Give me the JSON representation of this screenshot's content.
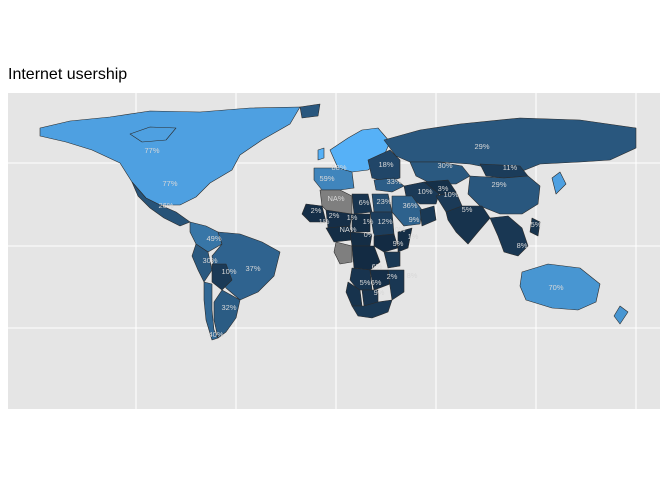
{
  "title": "Internet usership",
  "colors": {
    "panel_background": "#e5e5e5",
    "gridline": "#ffffff",
    "scale_low": "#132b43",
    "scale_high": "#56b1f7",
    "missing": "#7f7f7f",
    "border": "#2b2b2b",
    "label": "#d8d8d8"
  },
  "map_data": {
    "type": "choropleth",
    "variable": "internet users (% of population)",
    "regions": [
      {
        "name": "North America",
        "value": 77,
        "label": "77%"
      },
      {
        "name": "Canada",
        "value": 77,
        "label": "77%"
      },
      {
        "name": "Mexico",
        "value": 26,
        "label": "26%"
      },
      {
        "name": "Colombia",
        "value": 49,
        "label": "49%"
      },
      {
        "name": "Peru",
        "value": 30,
        "label": "30%"
      },
      {
        "name": "Bolivia",
        "value": 10,
        "label": "10%"
      },
      {
        "name": "Brazil",
        "value": 37,
        "label": "37%"
      },
      {
        "name": "Argentina",
        "value": 32,
        "label": "32%"
      },
      {
        "name": "Chile",
        "value": 40,
        "label": "40%"
      },
      {
        "name": "Northern Europe",
        "value": 88,
        "label": "88%"
      },
      {
        "name": "Western Europe",
        "value": 59,
        "label": "59%"
      },
      {
        "name": "Eastern Europe",
        "value": 18,
        "label": "18%"
      },
      {
        "name": "Russia",
        "value": 29,
        "label": "29%"
      },
      {
        "name": "Kazakhstan",
        "value": 30,
        "label": "30%"
      },
      {
        "name": "Mongolia",
        "value": 11,
        "label": "11%"
      },
      {
        "name": "China",
        "value": 29,
        "label": "29%"
      },
      {
        "name": "Turkey",
        "value": 33,
        "label": "33%"
      },
      {
        "name": "Iran",
        "value": 10,
        "label": "10%"
      },
      {
        "name": "Afghanistan",
        "value": 3,
        "label": "3%"
      },
      {
        "name": "Pakistan",
        "value": 10,
        "label": "10%"
      },
      {
        "name": "India",
        "value": 5,
        "label": "5%"
      },
      {
        "name": "Saudi Arabia",
        "value": 36,
        "label": "36%"
      },
      {
        "name": "Oman",
        "value": 9,
        "label": "9%"
      },
      {
        "name": "Algeria",
        "value": null,
        "label": "NA%"
      },
      {
        "name": "Mali",
        "value": 2,
        "label": "2%"
      },
      {
        "name": "Niger",
        "value": 2,
        "label": "2%"
      },
      {
        "name": "Nigeria",
        "value": 1,
        "label": "1%"
      },
      {
        "name": "Libya",
        "value": 6,
        "label": "6%"
      },
      {
        "name": "Egypt",
        "value": 23,
        "label": "23%"
      },
      {
        "name": "Sudan",
        "value": 12,
        "label": "12%"
      },
      {
        "name": "Chad",
        "value": 1,
        "label": "1%"
      },
      {
        "name": "Central African Republic",
        "value": 1,
        "label": "1%"
      },
      {
        "name": "Congo",
        "value": null,
        "label": "NA%"
      },
      {
        "name": "DR Congo",
        "value": 0,
        "label": "0%"
      },
      {
        "name": "Ethiopia",
        "value": 0,
        "label": "0%"
      },
      {
        "name": "Somalia",
        "value": 1,
        "label": "1%"
      },
      {
        "name": "Kenya",
        "value": 9,
        "label": "9%"
      },
      {
        "name": "Angola",
        "value": 6,
        "label": "6%"
      },
      {
        "name": "Zambia",
        "value": 2,
        "label": "2%"
      },
      {
        "name": "Mozambique",
        "value": 8,
        "label": "8%"
      },
      {
        "name": "Namibia",
        "value": 5,
        "label": "5%"
      },
      {
        "name": "Botswana",
        "value": 6,
        "label": "6%"
      },
      {
        "name": "South Africa",
        "value": 9,
        "label": "9%"
      },
      {
        "name": "Southeast Asia",
        "value": 8,
        "label": "8%"
      },
      {
        "name": "Philippines",
        "value": 5,
        "label": "5%"
      },
      {
        "name": "Australia",
        "value": 70,
        "label": "70%"
      }
    ]
  }
}
